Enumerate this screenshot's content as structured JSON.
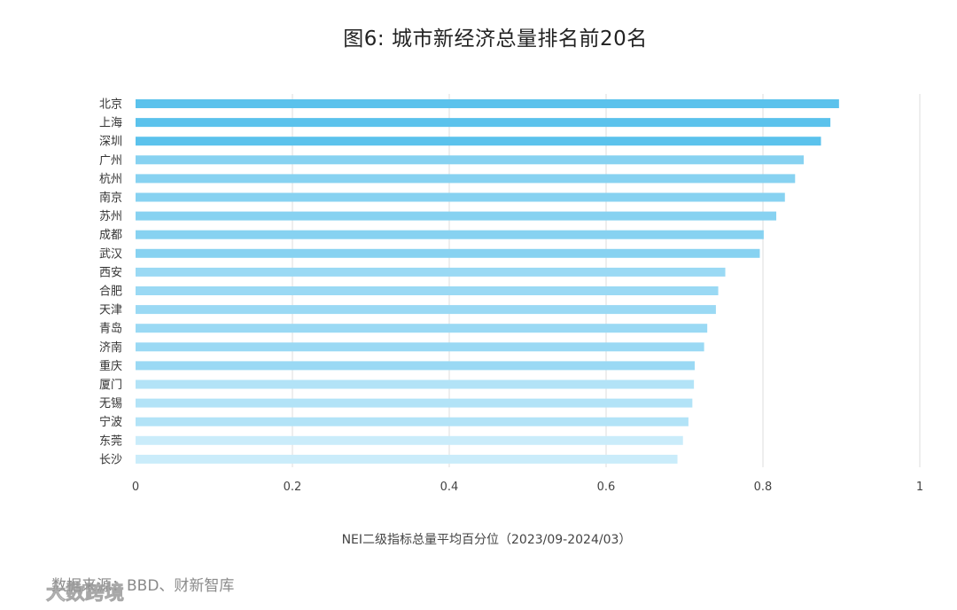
{
  "chart_data": {
    "type": "bar",
    "orientation": "horizontal",
    "title": "图6: 城市新经济总量排名前20名",
    "xlabel": "NEI二级指标总量平均百分位（2023/09-2024/03）",
    "ylabel": "",
    "xlim": [
      0,
      1
    ],
    "xticks": [
      "0",
      "0.2",
      "0.4",
      "0.6",
      "0.8",
      "1"
    ],
    "grid": true,
    "legend": "none",
    "categories": [
      "北京",
      "上海",
      "深圳",
      "广州",
      "杭州",
      "南京",
      "苏州",
      "成都",
      "武汉",
      "西安",
      "合肥",
      "天津",
      "青岛",
      "济南",
      "重庆",
      "厦门",
      "无锡",
      "宁波",
      "东莞",
      "长沙"
    ],
    "values": [
      0.897,
      0.886,
      0.874,
      0.852,
      0.841,
      0.828,
      0.817,
      0.801,
      0.796,
      0.752,
      0.743,
      0.74,
      0.729,
      0.725,
      0.713,
      0.712,
      0.71,
      0.705,
      0.698,
      0.691
    ],
    "colors": [
      "#5bc2ec",
      "#5bc2ec",
      "#5bc2ec",
      "#87d2f1",
      "#87d2f1",
      "#87d2f1",
      "#87d2f1",
      "#87d2f1",
      "#87d2f1",
      "#9ad9f4",
      "#9ad9f4",
      "#9ad9f4",
      "#9ad9f4",
      "#9ad9f4",
      "#9ad9f4",
      "#b2e3f7",
      "#b2e3f7",
      "#b2e3f7",
      "#caecfa",
      "#caecfa"
    ]
  },
  "footer": {
    "source": "数据来源：BBD、财新智库",
    "watermark_text": "大数跨境"
  }
}
